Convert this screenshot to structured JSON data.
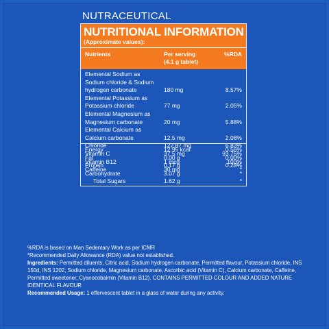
{
  "heading": "NUTRACEUTICAL",
  "panel": {
    "title": "NUTRITIONAL INFORMATION",
    "subtitle": "(Approximate values):",
    "columns": {
      "nutrients": "Nutrients",
      "serving_line1": "Per serving",
      "serving_line2": "(4.1 g tablet)",
      "rda": "%RDA"
    }
  },
  "rows_a": [
    {
      "lines": [
        "Elemental Sodium as",
        "Sodium chloride & Sodium",
        "hydrogen carbonate"
      ],
      "value": "180 mg",
      "rda": "8.57%"
    },
    {
      "lines": [
        "Elemental Potassium as",
        "Potassium chloride"
      ],
      "value": "77 mg",
      "rda": "2.05%"
    },
    {
      "lines": [
        "Elemental Magnesium as",
        "Magnesium carbonate"
      ],
      "value": "20 mg",
      "rda": "5.88%"
    },
    {
      "lines": [
        "Elemental Calcium as",
        "Calcium carbonate"
      ],
      "value": "12.5 mg",
      "rda": "2.08%"
    },
    {
      "lines": [
        "Chloride"
      ],
      "value": "122.87 mg",
      "rda": "6.83%"
    },
    {
      "lines": [
        "Vitamin C"
      ],
      "value": "37.5 mg",
      "rda": "93.75%"
    },
    {
      "lines": [
        "Vitamin B12"
      ],
      "value": "1 mcg",
      "rda": "100%"
    },
    {
      "lines": [
        "Caffeine"
      ],
      "value": "30 mg",
      "rda": "*"
    }
  ],
  "rows_b": [
    {
      "name": "Energy",
      "value": "12.95 kcal",
      "rda": "0.56%"
    },
    {
      "name": "Fat",
      "value": "0.00 g",
      "rda": "0.00%"
    },
    {
      "name": "Protein",
      "value": "0.17 g",
      "rda": "0.28%"
    },
    {
      "name": "Carbohydrate",
      "value": "3.07 g",
      "rda": "*"
    },
    {
      "name": "Total Sugars",
      "value": "1.62 g",
      "rda": "*"
    }
  ],
  "footnotes": {
    "rda_basis": "%RDA is based on Man Sedentary Work as per ICMR",
    "rda_note": "*Recommended Daily Allowance (RDA) value not established.",
    "ingredients_label": "Ingredients:",
    "ingredients_text": " Permitted diluents, Citric acid, Sodium hydrogen carbonate, Permitted flavour, Potassium chloride, INS 150d, INS 1202, Sodium chloride, Magnesium carbonate, Ascorbic acid (Vitamin C), Calcium carbonate, Caffeine, Permitted sweetener, Cyanocobalmin (Vitamin B12). CONTAINS PERMITTED COLOUR AND ADDED NATURE IDENTICAL FLAVOUR",
    "usage_label": "Recommended Usage:",
    "usage_text": " 1 effervescent tablet in a glass of water during any activity."
  }
}
